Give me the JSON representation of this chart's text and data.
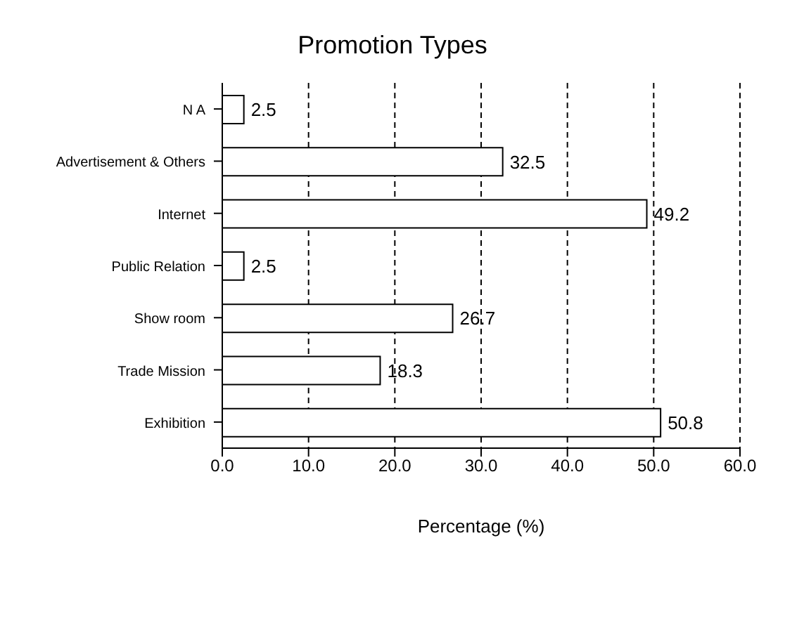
{
  "chart_data": {
    "type": "bar",
    "orientation": "horizontal",
    "title": "Promotion Types",
    "xlabel": "Percentage (%)",
    "categories": [
      "N A",
      "Advertisement & Others",
      "Internet",
      "Public Relation",
      "Show room",
      "Trade Mission",
      "Exhibition"
    ],
    "values": [
      2.5,
      32.5,
      49.2,
      2.5,
      26.7,
      18.3,
      50.8
    ],
    "color": "#ffffff",
    "xlim": [
      0,
      60
    ],
    "xticks": [
      {
        "value": 0,
        "label": "0.0"
      },
      {
        "value": 10,
        "label": "10.0"
      },
      {
        "value": 20,
        "label": "20.0"
      },
      {
        "value": 30,
        "label": "30.0"
      },
      {
        "value": 40,
        "label": "40.0"
      },
      {
        "value": 50,
        "label": "50.0"
      },
      {
        "value": 60,
        "label": "60.0"
      }
    ],
    "grid": "x",
    "data_labels": true
  }
}
